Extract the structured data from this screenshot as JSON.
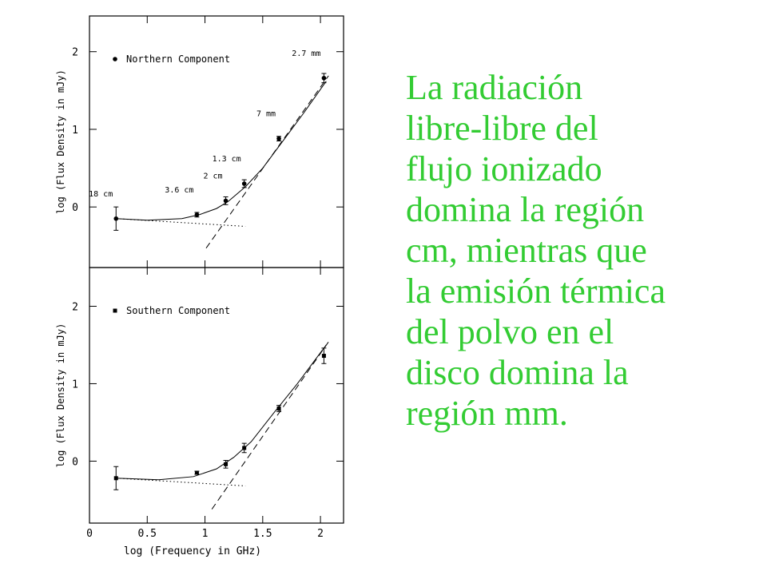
{
  "chart_data": [
    {
      "type": "scatter",
      "ylabel": "log (Flux Density in mJy)",
      "xlim": [
        0,
        2.2
      ],
      "ylim": [
        -0.78,
        2.46
      ],
      "xticks": [
        0,
        0.5,
        1,
        1.5,
        2
      ],
      "yticks": [
        0,
        1,
        2
      ],
      "legend": "upper left",
      "x": [
        0.23,
        0.93,
        1.18,
        1.34,
        1.64,
        2.03
      ],
      "series": [
        {
          "name": "Northern Component",
          "color": "#000000",
          "marker": "circle",
          "values": [
            -0.15,
            -0.1,
            0.08,
            0.3,
            0.88,
            1.66
          ],
          "errors": [
            0.15,
            0.03,
            0.05,
            0.05,
            0.03,
            0.06
          ],
          "point_labels": [
            "18 cm",
            "3.6 cm",
            "2 cm",
            "1.3 cm",
            "7 mm",
            "2.7 mm"
          ]
        }
      ],
      "models": [
        {
          "style": "solid",
          "x": [
            0.23,
            0.5,
            0.8,
            0.95,
            1.1,
            1.2,
            1.35,
            1.5,
            1.7,
            1.85,
            2.05
          ],
          "values": [
            -0.15,
            -0.17,
            -0.15,
            -0.1,
            -0.02,
            0.07,
            0.26,
            0.5,
            0.9,
            1.2,
            1.62
          ]
        },
        {
          "style": "dashed",
          "x": [
            1.01,
            2.07
          ],
          "values": [
            -0.53,
            1.69
          ]
        },
        {
          "style": "dotted",
          "x": [
            0.23,
            1.35
          ],
          "values": [
            -0.15,
            -0.25
          ]
        }
      ]
    },
    {
      "type": "scatter",
      "xlabel": "log (Frequency in GHz)",
      "ylabel": "log (Flux Density in mJy)",
      "xlim": [
        0,
        2.2
      ],
      "ylim": [
        -0.8,
        2.5
      ],
      "xticks": [
        0,
        0.5,
        1,
        1.5,
        2
      ],
      "yticks": [
        0,
        1,
        2
      ],
      "legend": "upper left",
      "x": [
        0.23,
        0.93,
        1.18,
        1.34,
        1.64,
        2.03
      ],
      "series": [
        {
          "name": "Southern Component",
          "color": "#000000",
          "marker": "square",
          "values": [
            -0.22,
            -0.15,
            -0.04,
            0.17,
            0.68,
            1.36
          ],
          "errors": [
            0.15,
            0.02,
            0.05,
            0.06,
            0.04,
            0.1
          ]
        }
      ],
      "models": [
        {
          "style": "solid",
          "x": [
            0.23,
            0.6,
            0.9,
            1.1,
            1.25,
            1.4,
            1.6,
            1.8,
            2.05
          ],
          "values": [
            -0.22,
            -0.24,
            -0.2,
            -0.1,
            0.05,
            0.25,
            0.63,
            1.0,
            1.5
          ]
        },
        {
          "style": "dashed",
          "x": [
            1.06,
            2.07
          ],
          "values": [
            -0.62,
            1.54
          ]
        },
        {
          "style": "dotted",
          "x": [
            0.23,
            1.35
          ],
          "values": [
            -0.22,
            -0.32
          ]
        }
      ]
    }
  ],
  "text": {
    "lines": [
      "La radiación",
      "libre-libre del",
      "flujo ionizado",
      "domina la región",
      "cm, mientras que",
      "la emisión térmica",
      "del polvo en el",
      "disco domina la",
      "región mm."
    ]
  }
}
